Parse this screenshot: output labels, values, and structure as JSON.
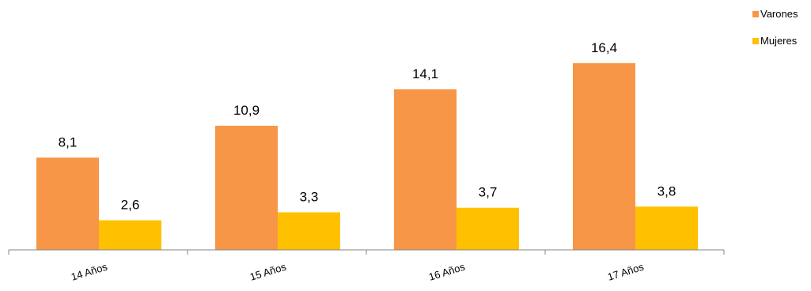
{
  "chart_data": {
    "type": "bar",
    "categories": [
      "14 Años",
      "15 Años",
      "16 Años",
      "17 Años"
    ],
    "series": [
      {
        "name": "Varones",
        "color": "#F79646",
        "values": [
          8.1,
          10.9,
          14.1,
          16.4
        ],
        "labels": [
          "8,1",
          "10,9",
          "14,1",
          "16,4"
        ]
      },
      {
        "name": "Mujeres",
        "color": "#FFC000",
        "values": [
          2.6,
          3.3,
          3.7,
          3.8
        ],
        "labels": [
          "2,6",
          "3,3",
          "3,7",
          "3,8"
        ]
      }
    ],
    "ylim": [
      0,
      20
    ],
    "grid": false,
    "legend_position": "top-right",
    "xlabel": "",
    "ylabel": ""
  }
}
